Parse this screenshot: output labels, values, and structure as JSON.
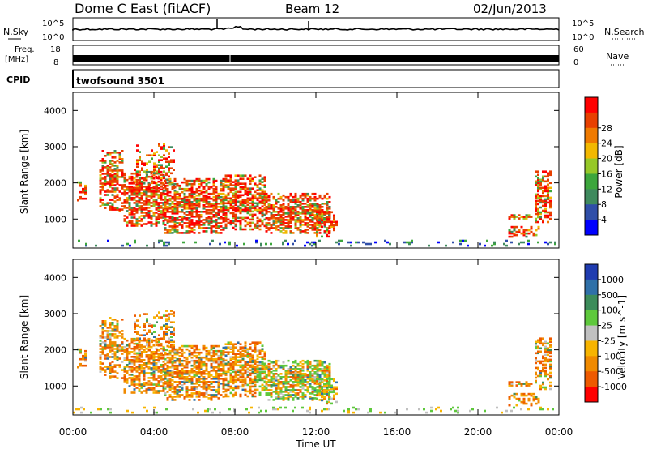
{
  "header": {
    "station": "Dome C East (fitACF)",
    "beam": "Beam 12",
    "date": "02/Jun/2013"
  },
  "strips": {
    "nsky_label": "N.Sky",
    "nsky_ticks": [
      "10^5",
      "10^0"
    ],
    "nsearch_label": "N.Search",
    "nsearch_ticks": [
      "10^5",
      "10^0"
    ],
    "freq_label_1": "Freq.",
    "freq_label_2": "[MHz]",
    "freq_ticks": [
      "18",
      "8"
    ],
    "nave_label": "Nave",
    "nave_ticks": [
      "60",
      "0"
    ],
    "cpid_label": "CPID",
    "cpid_value": "twofsound 3501"
  },
  "chart_data": [
    {
      "type": "heatmap",
      "name": "power",
      "ylabel": "Slant Range [km]",
      "yticks": [
        "1000",
        "2000",
        "3000",
        "4000"
      ],
      "ylim": [
        200,
        4500
      ],
      "colorbar_label": "Power [dB]",
      "colorbar_ticks": [
        "4",
        "8",
        "12",
        "16",
        "20",
        "24",
        "28"
      ],
      "colors": [
        "#0000ff",
        "#2f4ea8",
        "#3f8a5e",
        "#3ca63c",
        "#96c828",
        "#f2b800",
        "#ef7a00",
        "#e84000",
        "#ff0000"
      ]
    },
    {
      "type": "heatmap",
      "name": "velocity",
      "ylabel": "Slant Range [km]",
      "yticks": [
        "1000",
        "2000",
        "3000",
        "4000"
      ],
      "ylim": [
        200,
        4500
      ],
      "colorbar_label": "Velocity [m s^-1]",
      "colorbar_ticks": [
        "1000",
        "500",
        "100",
        "25",
        "-25",
        "-100",
        "-500",
        "-1000"
      ],
      "colors": [
        "#1f3cb0",
        "#2f70a8",
        "#3c8c5a",
        "#5ec83c",
        "#c0c0c0",
        "#f7b400",
        "#f08a00",
        "#ee5a00",
        "#ff0000"
      ]
    }
  ],
  "xaxis": {
    "ticks": [
      "00:00",
      "04:00",
      "08:00",
      "12:00",
      "16:00",
      "20:00",
      "00:00"
    ],
    "label": "Time UT"
  }
}
